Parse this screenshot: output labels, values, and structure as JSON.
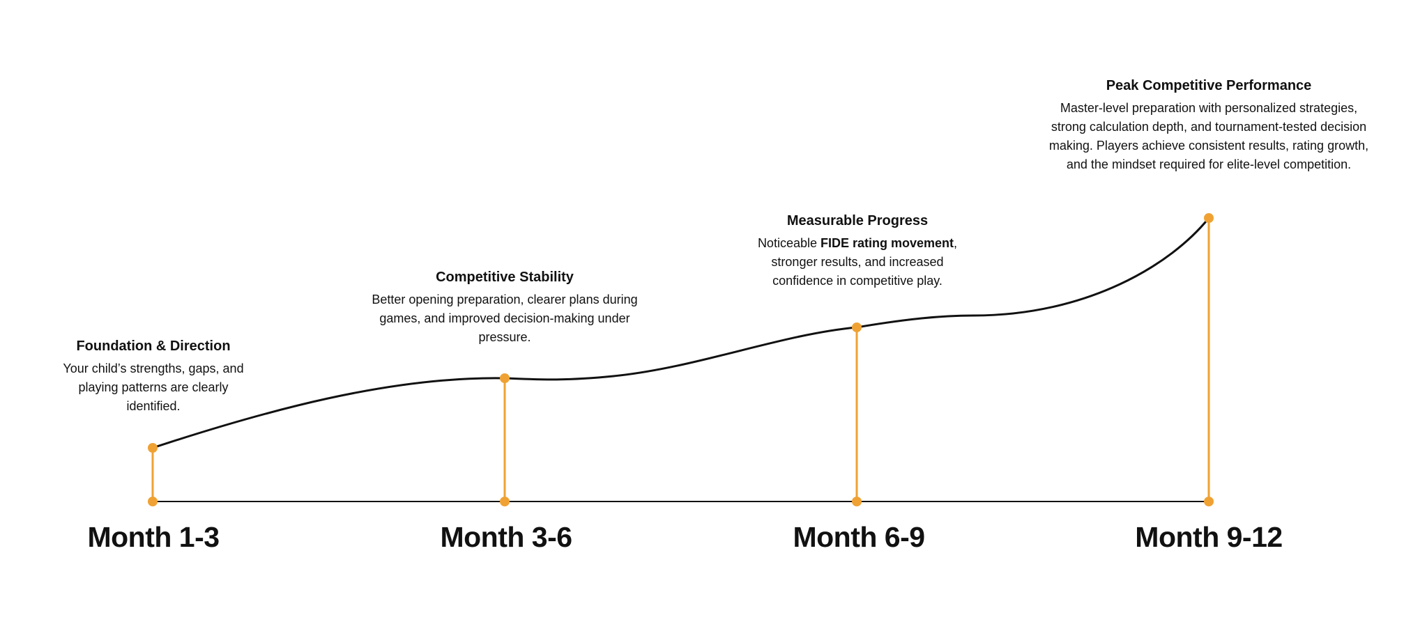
{
  "colors": {
    "accent": "#EFA233",
    "line": "#111111"
  },
  "milestones": [
    {
      "period": "Month 1-3",
      "title": "Foundation & Direction",
      "body": "Your child’s strengths, gaps, and playing patterns are clearly identified.",
      "level": 1
    },
    {
      "period": "Month 3-6",
      "title": "Competitive Stability",
      "body": "Better opening preparation, clearer plans during games, and improved decision-making under pressure.",
      "level": 2
    },
    {
      "period": "Month 6-9",
      "title": "Measurable Progress",
      "body_pre": "Noticeable ",
      "body_bold": "FIDE rating movement",
      "body_post": ", stronger results, and increased confidence in competitive play.",
      "level": 3
    },
    {
      "period": "Month 9-12",
      "title": "Peak Competitive Performance",
      "body": "Master-level preparation with personalized strategies, strong calculation depth, and tournament-tested decision making. Players achieve consistent results, rating growth, and the mindset required for elite-level competition.",
      "level": 4
    }
  ]
}
